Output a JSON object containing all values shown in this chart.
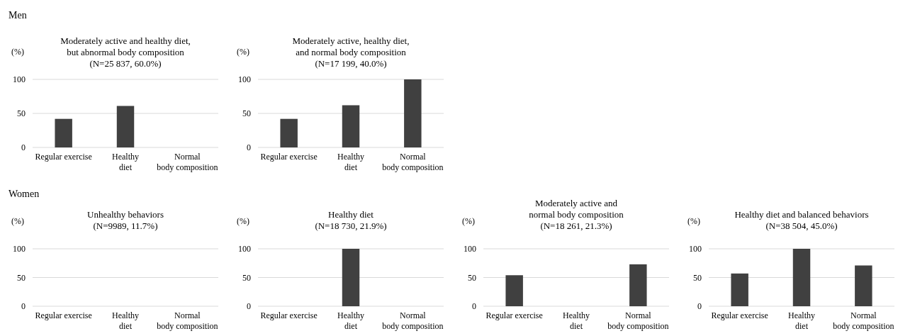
{
  "chart_data": [
    {
      "type": "bar",
      "annotations": [
        "Men"
      ],
      "title": "Moderately active and healthy diet,\nbut abnormal body composition\n(N=25 837, 60.0%)",
      "ylabel": "(%)",
      "categories": [
        "Regular exercise",
        "Healthy\ndiet",
        "Normal\nbody composition"
      ],
      "values": [
        42,
        61,
        0
      ],
      "color": "#404040",
      "ylim": [
        0,
        100
      ],
      "yticks": [
        0,
        50,
        100
      ],
      "grid": "y"
    },
    {
      "type": "bar",
      "title": "Moderately active, healthy diet,\nand normal body composition\n(N=17 199, 40.0%)",
      "ylabel": "(%)",
      "categories": [
        "Regular exercise",
        "Healthy\ndiet",
        "Normal\nbody composition"
      ],
      "values": [
        42,
        62,
        100
      ],
      "color": "#404040",
      "ylim": [
        0,
        100
      ],
      "yticks": [
        0,
        50,
        100
      ],
      "grid": "y"
    },
    {
      "type": "bar",
      "annotations": [
        "Women"
      ],
      "title": "Unhealthy behaviors\n(N=9989, 11.7%)",
      "ylabel": "(%)",
      "categories": [
        "Regular exercise",
        "Healthy\ndiet",
        "Normal\nbody composition"
      ],
      "values": [
        0,
        0,
        0
      ],
      "color": "#404040",
      "ylim": [
        0,
        100
      ],
      "yticks": [
        0,
        50,
        100
      ],
      "grid": "y"
    },
    {
      "type": "bar",
      "title": "Healthy diet\n(N=18 730, 21.9%)",
      "ylabel": "(%)",
      "categories": [
        "Regular exercise",
        "Healthy\ndiet",
        "Normal\nbody composition"
      ],
      "values": [
        0,
        100,
        0
      ],
      "color": "#404040",
      "ylim": [
        0,
        100
      ],
      "yticks": [
        0,
        50,
        100
      ],
      "grid": "y"
    },
    {
      "type": "bar",
      "title": "Moderately active and\nnormal body composition\n(N=18 261, 21.3%)",
      "ylabel": "(%)",
      "categories": [
        "Regular exercise",
        "Healthy\ndiet",
        "Normal\nbody composition"
      ],
      "values": [
        54,
        0,
        73
      ],
      "color": "#404040",
      "ylim": [
        0,
        100
      ],
      "yticks": [
        0,
        50,
        100
      ],
      "grid": "y"
    },
    {
      "type": "bar",
      "title": "Healthy diet and balanced behaviors\n(N=38 504, 45.0%)",
      "ylabel": "(%)",
      "categories": [
        "Regular exercise",
        "Healthy\ndiet",
        "Normal\nbody composition"
      ],
      "values": [
        57,
        100,
        71
      ],
      "color": "#404040",
      "ylim": [
        0,
        100
      ],
      "yticks": [
        0,
        50,
        100
      ],
      "grid": "y"
    }
  ]
}
